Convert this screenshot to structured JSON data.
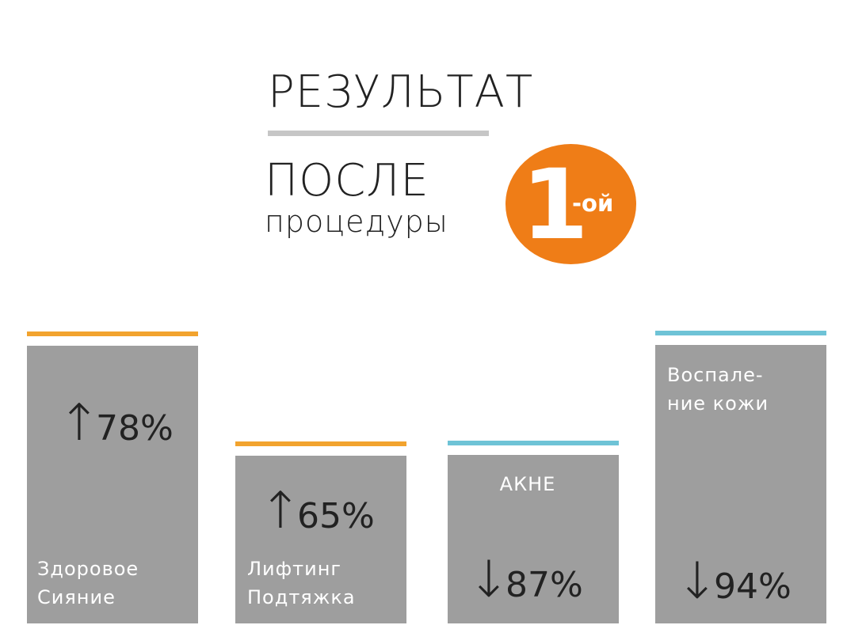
{
  "header": {
    "title": "РЕЗУЛЬТАТ",
    "subtitle_line1": "ПОСЛЕ",
    "subtitle_line2": "процедуры",
    "badge_number": "1",
    "badge_suffix": "-ой"
  },
  "colors": {
    "accent_orange": "#ef7d17",
    "bar_fill": "#9e9e9e",
    "rule_gray": "#c6c6c6",
    "top_line_orange": "#f2a32e",
    "top_line_blue": "#6ec3d6",
    "text_dark": "#222222",
    "text_light": "#ffffff"
  },
  "chart_data": {
    "type": "bar",
    "categories": [
      "Здоровое Сияние",
      "Лифтинг Подтяжка",
      "АКНЕ",
      "Воспаление кожи"
    ],
    "values": [
      78,
      65,
      87,
      94
    ],
    "series": [
      {
        "values": [
          78,
          65,
          87,
          94
        ],
        "directions": [
          "up",
          "up",
          "down",
          "down"
        ],
        "colors": [
          "orange",
          "orange",
          "blue",
          "blue"
        ]
      }
    ],
    "items": [
      {
        "label_lines": [
          "Здоровое",
          "Сияние"
        ],
        "value": 78,
        "value_label": "78%",
        "direction": "up",
        "arrow": "↑",
        "color": "orange"
      },
      {
        "label_lines": [
          "Лифтинг",
          "Подтяжка"
        ],
        "value": 65,
        "value_label": "65%",
        "direction": "up",
        "arrow": "↑",
        "color": "orange"
      },
      {
        "label_lines": [
          "АКНЕ"
        ],
        "value": 87,
        "value_label": "87%",
        "direction": "down",
        "arrow": "↓",
        "color": "blue"
      },
      {
        "label_lines": [
          "Воспале-",
          "ние кожи"
        ],
        "value": 94,
        "value_label": "94%",
        "direction": "down",
        "arrow": "↓",
        "color": "blue"
      }
    ],
    "title": "",
    "xlabel": "",
    "ylabel": "",
    "ylim": [
      0,
      100
    ],
    "grid": false,
    "legend": "none"
  }
}
